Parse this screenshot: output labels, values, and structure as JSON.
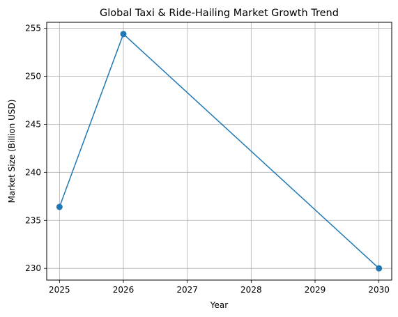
{
  "chart_data": {
    "type": "line",
    "title": "Global Taxi & Ride-Hailing Market Growth Trend",
    "xlabel": "Year",
    "ylabel": "Market Size (Billion USD)",
    "x": [
      2025,
      2026,
      2030
    ],
    "series": [
      {
        "values": [
          236.4,
          254.4,
          230.0
        ],
        "color": "#1f77b4",
        "marker": "circle"
      }
    ],
    "xticks": [
      2025,
      2026,
      2027,
      2028,
      2029,
      2030
    ],
    "yticks": [
      230,
      235,
      240,
      245,
      250,
      255
    ],
    "xlim": [
      2024.8,
      2030.2
    ],
    "ylim": [
      228.78,
      255.62
    ],
    "grid": true
  }
}
